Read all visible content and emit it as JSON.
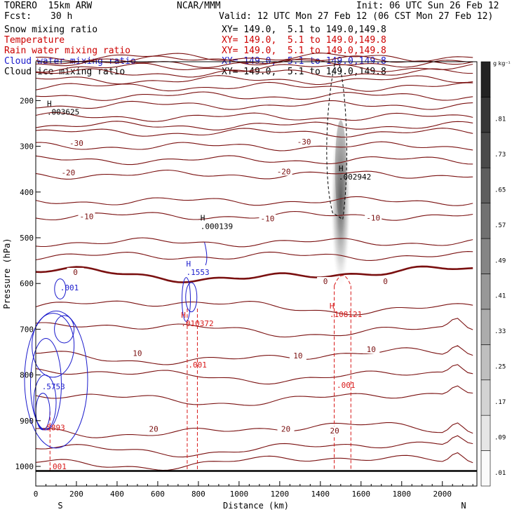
{
  "header": {
    "model": "TORERO  15km ARW",
    "center": "NCAR/MMM",
    "init": "Init: 06 UTC Sun 26 Feb 12",
    "fcst_label": "Fcst:",
    "fcst_value": "30 h",
    "valid": "Valid: 12 UTC Mon 27 Feb 12 (06 CST Mon 27 Feb 12)"
  },
  "fields": [
    {
      "label": "Snow mixing ratio",
      "color": "#000000",
      "xy": "XY= 149.0,  5.1 to 149.0,149.8"
    },
    {
      "label": "Temperature",
      "color": "#cc0000",
      "xy": "XY= 149.0,  5.1 to 149.0,149.8"
    },
    {
      "label": "Rain water mixing ratio",
      "color": "#cc0000",
      "xy": "XY= 149.0,  5.1 to 149.0,149.8"
    },
    {
      "label": "Cloud water mixing ratio",
      "color": "#1a1acc",
      "xy": "XY= 149.0,  5.1 to 149.0,149.8"
    },
    {
      "label": "Cloud ice mixing ratio",
      "color": "#000000",
      "xy": "XY= 149.0,  5.1 to 149.0,149.8"
    }
  ],
  "colors": {
    "temperature": "#7a1010",
    "freezing": "#7a1010",
    "rain": "#d81818",
    "cloud_water": "#1a1acc",
    "ice": "#000000",
    "frame": "#000000"
  },
  "chart_data": {
    "type": "cross-section",
    "xlabel": "Distance (km)",
    "ylabel": "Pressure (hPa)",
    "xlim": [
      0,
      2170
    ],
    "ylim": [
      1030,
      100
    ],
    "x_ticks": [
      0,
      200,
      400,
      600,
      800,
      1000,
      1200,
      1400,
      1600,
      1800,
      2000
    ],
    "y_ticks": [
      200,
      300,
      400,
      500,
      600,
      700,
      800,
      900,
      1000
    ],
    "endpoints": {
      "left": "S",
      "right": "N"
    },
    "colorbar": {
      "units": "g kg⁻¹",
      "levels": [
        0.01,
        0.09,
        0.17,
        0.25,
        0.33,
        0.41,
        0.49,
        0.57,
        0.65,
        0.73,
        0.81
      ],
      "labels": [
        ".01",
        ".09",
        ".17",
        ".25",
        ".33",
        ".41",
        ".49",
        ".57",
        ".65",
        ".73",
        ".81"
      ]
    },
    "temperature_isotherms_C": [
      -70,
      -60,
      -50,
      -40,
      -30,
      -20,
      -10,
      0,
      10,
      20
    ],
    "temperature_labels": [
      {
        "text": "-30",
        "x": 200,
        "p": 293
      },
      {
        "text": "-20",
        "x": 160,
        "p": 357
      },
      {
        "text": "-10",
        "x": 250,
        "p": 453
      },
      {
        "text": "0",
        "x": 195,
        "p": 575
      },
      {
        "text": "10",
        "x": 500,
        "p": 752
      },
      {
        "text": "20",
        "x": 580,
        "p": 918
      },
      {
        "text": "-30",
        "x": 1320,
        "p": 290
      },
      {
        "text": "-20",
        "x": 1220,
        "p": 355
      },
      {
        "text": "-10",
        "x": 1140,
        "p": 458
      },
      {
        "text": "0",
        "x": 1425,
        "p": 595
      },
      {
        "text": "10",
        "x": 1290,
        "p": 758
      },
      {
        "text": "20",
        "x": 1230,
        "p": 918
      },
      {
        "text": "-10",
        "x": 1660,
        "p": 456
      },
      {
        "text": "0",
        "x": 1720,
        "p": 595
      },
      {
        "text": "10",
        "x": 1650,
        "p": 744
      },
      {
        "text": "20",
        "x": 1470,
        "p": 922
      }
    ],
    "snow_max": [
      {
        "x": 1490,
        "p": 370,
        "label": "H",
        "value": ".002942"
      }
    ],
    "ice_max": [
      {
        "x": 55,
        "p": 228,
        "label": "H",
        "value": ".003625"
      },
      {
        "x": 810,
        "p": 478,
        "label": "H",
        "value": ".000139"
      }
    ],
    "cloud_water_max": [
      {
        "x": 740,
        "p": 578,
        "label": "H",
        "value": ".1553"
      },
      {
        "x": 30,
        "p": 828,
        "label": "",
        "value": ".5753"
      },
      {
        "x": 120,
        "p": 612,
        "label": "",
        "value": ".001"
      }
    ],
    "rain_max": [
      {
        "x": 1445,
        "p": 670,
        "label": "H",
        "value": ".108121"
      },
      {
        "x": 715,
        "p": 690,
        "label": "H",
        "value": ".010372"
      },
      {
        "x": 30,
        "p": 918,
        "label": "",
        "value": ".5893"
      },
      {
        "x": 60,
        "p": 1003,
        "label": "",
        "value": ".001"
      },
      {
        "x": 750,
        "p": 781,
        "label": "",
        "value": ".001"
      },
      {
        "x": 1480,
        "p": 825,
        "label": "",
        "value": ".001"
      }
    ],
    "snow_column": {
      "x_center": 1500,
      "p_top": 230,
      "p_bottom": 610,
      "peak": 0.81
    }
  }
}
